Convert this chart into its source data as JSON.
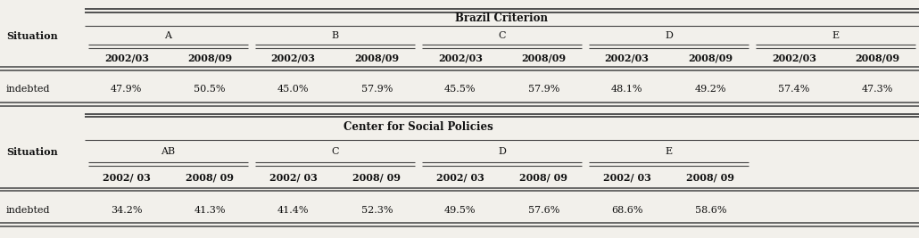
{
  "brazil_title": "Brazil Criterion",
  "brazil_groups": [
    "A",
    "B",
    "C",
    "D",
    "E"
  ],
  "brazil_years": [
    "2002/03",
    "2008/09"
  ],
  "brazil_situation_label": "Situation",
  "brazil_data": [
    "47.9%",
    "50.5%",
    "45.0%",
    "57.9%",
    "45.5%",
    "57.9%",
    "48.1%",
    "49.2%",
    "57.4%",
    "47.3%"
  ],
  "brazil_row_label": "indebted",
  "csp_title": "Center for Social Policies",
  "csp_groups": [
    "AB",
    "C",
    "D",
    "E"
  ],
  "csp_years": [
    "2002/ 03",
    "2008/ 09"
  ],
  "csp_situation_label": "Situation",
  "csp_data": [
    "34.2%",
    "41.3%",
    "41.4%",
    "52.3%",
    "49.5%",
    "57.6%",
    "68.6%",
    "58.6%"
  ],
  "csp_row_label": "indebted",
  "bg_color": "#f2f0eb",
  "line_color": "#444444",
  "text_color": "#111111",
  "font_size": 8.0,
  "title_font_size": 8.5
}
